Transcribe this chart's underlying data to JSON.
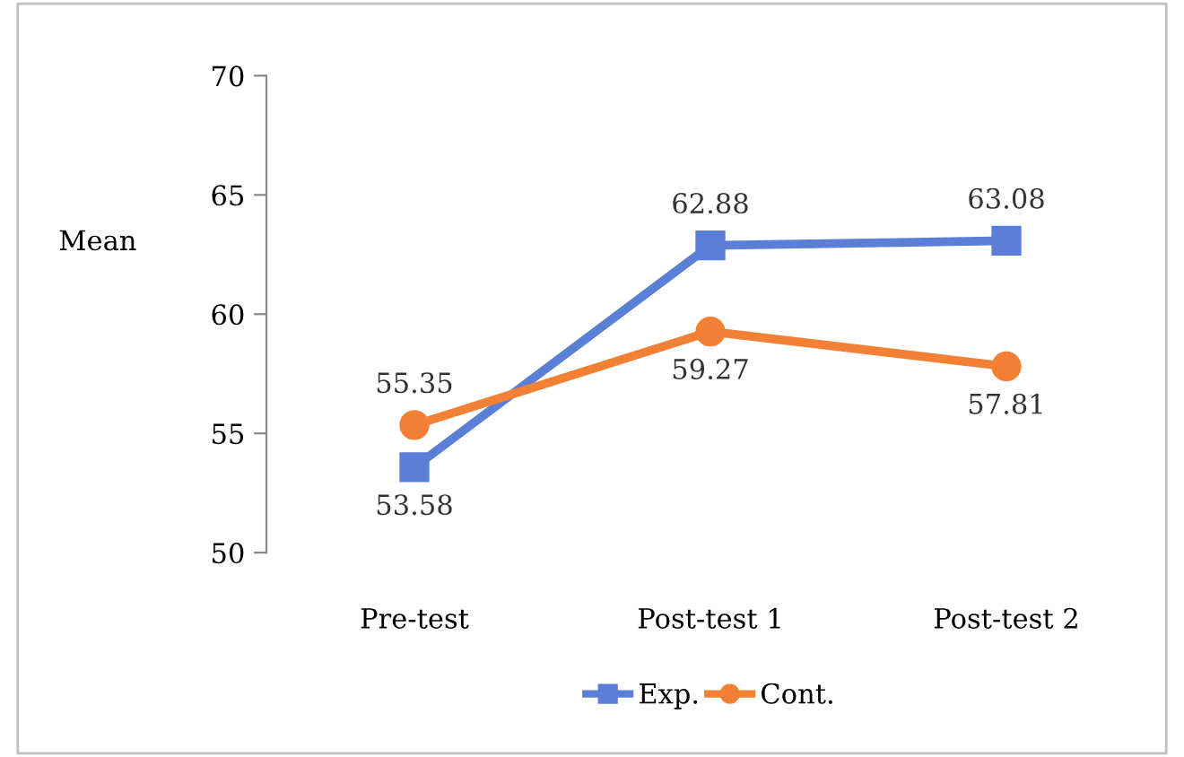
{
  "chart_data": {
    "type": "line",
    "ylabel": "Mean",
    "categories": [
      "Pre-test",
      "Post-test 1",
      "Post-test 2"
    ],
    "series": [
      {
        "name": "Exp.",
        "color": "#5b7fd6",
        "marker": "square",
        "values": [
          53.58,
          62.88,
          63.08
        ]
      },
      {
        "name": "Cont.",
        "color": "#f28035",
        "marker": "circle",
        "values": [
          55.35,
          59.27,
          57.81
        ]
      }
    ],
    "ylim": [
      50,
      70
    ],
    "yticks": [
      50,
      55,
      60,
      65,
      70
    ],
    "grid": false,
    "legend": "bottom",
    "data_labels": true,
    "line_style": "solid"
  }
}
